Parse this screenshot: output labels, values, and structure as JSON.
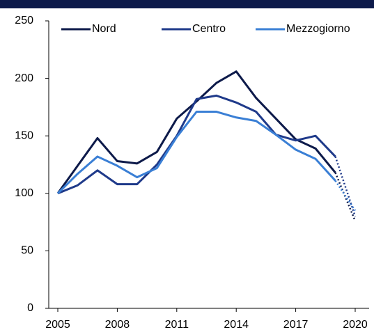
{
  "chart_data": {
    "type": "line",
    "x": [
      2005,
      2006,
      2007,
      2008,
      2009,
      2010,
      2011,
      2012,
      2013,
      2014,
      2015,
      2016,
      2017,
      2018,
      2019,
      2020
    ],
    "series": [
      {
        "name": "Nord",
        "color": "#0d1a4a",
        "values": [
          100,
          124,
          148,
          128,
          126,
          136,
          165,
          180,
          196,
          206,
          183,
          165,
          147,
          139,
          118,
          76
        ]
      },
      {
        "name": "Centro",
        "color": "#1f3a8a",
        "values": [
          100,
          107,
          120,
          108,
          108,
          125,
          150,
          182,
          185,
          179,
          171,
          151,
          146,
          150,
          132,
          80
        ]
      },
      {
        "name": "Mezzogiorno",
        "color": "#3a7fd5",
        "values": [
          100,
          117,
          132,
          124,
          114,
          122,
          149,
          171,
          171,
          166,
          163,
          151,
          138,
          130,
          111,
          85
        ]
      }
    ],
    "dotted_from": 2019,
    "xlim": [
      2005,
      2020
    ],
    "xticks": [
      2005,
      2008,
      2011,
      2014,
      2017,
      2020
    ],
    "ylim": [
      0,
      250
    ],
    "yticks": [
      0,
      50,
      100,
      150,
      200,
      250
    ],
    "grid": false,
    "legend": "top"
  }
}
